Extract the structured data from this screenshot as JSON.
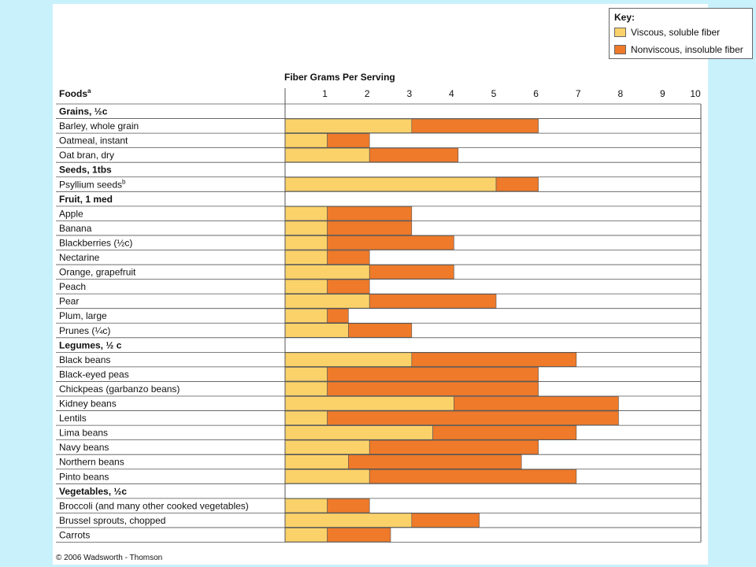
{
  "credit": "© 2006 Wadsworth - Thomson",
  "colors": {
    "soluble": "#fbd26a",
    "insoluble": "#ee7a2a",
    "grid": "#555555",
    "background": "#c9f1fb"
  },
  "chart_data": {
    "type": "bar",
    "orientation": "horizontal",
    "stacked": true,
    "title": "Fiber Grams Per Serving",
    "column_header": "Foods",
    "column_header_sup": "a",
    "xlim": [
      0,
      10
    ],
    "xticks": [
      "1",
      "2",
      "3",
      "4",
      "5",
      "6",
      "7",
      "8",
      "9",
      "10"
    ],
    "legend": {
      "title": "Key:",
      "placement": "top-right",
      "items": [
        {
          "label": "Viscous, soluble fiber",
          "color": "#fbd26a"
        },
        {
          "label": "Nonviscous, insoluble fiber",
          "color": "#ee7a2a"
        }
      ]
    },
    "rows": [
      {
        "type": "header",
        "label": "Grains, ½c"
      },
      {
        "type": "item",
        "label": "Barley, whole grain",
        "soluble": 3.0,
        "insoluble": 3.0
      },
      {
        "type": "item",
        "label": "Oatmeal, instant",
        "soluble": 1.0,
        "insoluble": 1.0
      },
      {
        "type": "item",
        "label": "Oat bran, dry",
        "soluble": 2.0,
        "insoluble": 2.1
      },
      {
        "type": "header",
        "label": "Seeds, 1tbs"
      },
      {
        "type": "item",
        "label": "Psyllium seeds",
        "sup": "b",
        "soluble": 5.0,
        "insoluble": 1.0
      },
      {
        "type": "header",
        "label": "Fruit, 1 med"
      },
      {
        "type": "item",
        "label": "Apple",
        "soluble": 1.0,
        "insoluble": 2.0
      },
      {
        "type": "item",
        "label": "Banana",
        "soluble": 1.0,
        "insoluble": 2.0
      },
      {
        "type": "item",
        "label": "Blackberries (½c)",
        "soluble": 1.0,
        "insoluble": 3.0
      },
      {
        "type": "item",
        "label": "Nectarine",
        "soluble": 1.0,
        "insoluble": 1.0
      },
      {
        "type": "item",
        "label": "Orange, grapefruit",
        "soluble": 2.0,
        "insoluble": 2.0
      },
      {
        "type": "item",
        "label": "Peach",
        "soluble": 1.0,
        "insoluble": 1.0
      },
      {
        "type": "item",
        "label": "Pear",
        "soluble": 2.0,
        "insoluble": 3.0
      },
      {
        "type": "item",
        "label": "Plum, large",
        "soluble": 1.0,
        "insoluble": 0.5
      },
      {
        "type": "item",
        "label": "Prunes (¼c)",
        "soluble": 1.5,
        "insoluble": 1.5
      },
      {
        "type": "header",
        "label": "Legumes, ½ c"
      },
      {
        "type": "item",
        "label": "Black beans",
        "soluble": 3.0,
        "insoluble": 3.9
      },
      {
        "type": "item",
        "label": "Black-eyed peas",
        "soluble": 1.0,
        "insoluble": 5.0
      },
      {
        "type": "item",
        "label": "Chickpeas (garbanzo beans)",
        "soluble": 1.0,
        "insoluble": 5.0
      },
      {
        "type": "item",
        "label": "Kidney beans",
        "soluble": 4.0,
        "insoluble": 3.9
      },
      {
        "type": "item",
        "label": "Lentils",
        "soluble": 1.0,
        "insoluble": 6.9
      },
      {
        "type": "item",
        "label": "Lima beans",
        "soluble": 3.5,
        "insoluble": 3.4
      },
      {
        "type": "item",
        "label": "Navy beans",
        "soluble": 2.0,
        "insoluble": 4.0
      },
      {
        "type": "item",
        "label": "Northern beans",
        "soluble": 1.5,
        "insoluble": 4.1
      },
      {
        "type": "item",
        "label": "Pinto beans",
        "soluble": 2.0,
        "insoluble": 4.9
      },
      {
        "type": "header",
        "label": "Vegetables, ½c"
      },
      {
        "type": "item",
        "label": "Broccoli (and many other cooked vegetables)",
        "soluble": 1.0,
        "insoluble": 1.0
      },
      {
        "type": "item",
        "label": "Brussel sprouts, chopped",
        "soluble": 3.0,
        "insoluble": 1.6
      },
      {
        "type": "item",
        "label": "Carrots",
        "soluble": 1.0,
        "insoluble": 1.5
      }
    ]
  }
}
